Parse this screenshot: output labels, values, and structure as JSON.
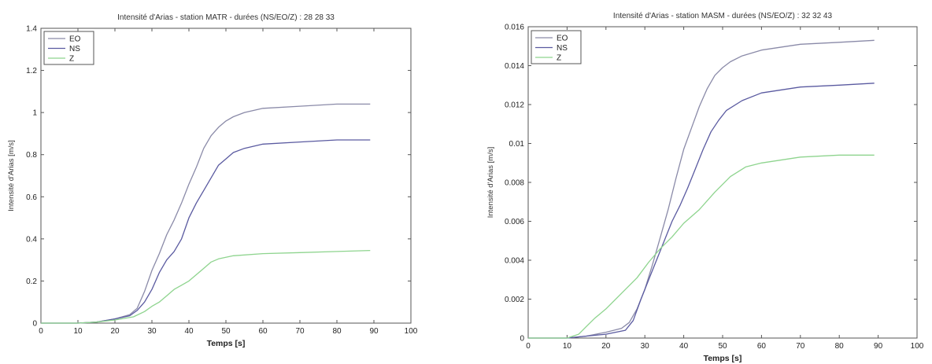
{
  "chart_data": [
    {
      "type": "line",
      "title": "Intensité d'Arias - station MATR - durées (NS/EO/Z) : 28 28 33",
      "xlabel": "Temps [s]",
      "ylabel": "Intensité d'Arias [m/s]",
      "xlim": [
        0,
        100
      ],
      "ylim": [
        0,
        1.4
      ],
      "xticks": [
        0,
        10,
        20,
        30,
        40,
        50,
        60,
        70,
        80,
        90,
        100
      ],
      "yticks": [
        0,
        0.2,
        0.4,
        0.6,
        0.8,
        1,
        1.2,
        1.4
      ],
      "ytick_labels": [
        "0",
        "0.2",
        "0.4",
        "0.6",
        "0.8",
        "1",
        "1.2",
        "1.4"
      ],
      "grid": false,
      "legend": "top-left",
      "series": [
        {
          "name": "EO",
          "color": "#8a8aa8",
          "x": [
            0,
            10,
            15,
            20,
            24,
            26,
            28,
            30,
            32,
            34,
            36,
            38,
            40,
            42,
            44,
            46,
            48,
            50,
            52,
            55,
            60,
            70,
            80,
            89
          ],
          "y": [
            0,
            0,
            0.005,
            0.02,
            0.04,
            0.07,
            0.15,
            0.25,
            0.33,
            0.42,
            0.49,
            0.57,
            0.66,
            0.74,
            0.83,
            0.89,
            0.93,
            0.96,
            0.98,
            1.0,
            1.02,
            1.03,
            1.04,
            1.04
          ]
        },
        {
          "name": "NS",
          "color": "#5a5aa0",
          "x": [
            0,
            10,
            15,
            20,
            24,
            26,
            28,
            30,
            32,
            34,
            36,
            38,
            40,
            42,
            44,
            46,
            48,
            50,
            52,
            55,
            60,
            70,
            80,
            89
          ],
          "y": [
            0,
            0,
            0.005,
            0.02,
            0.035,
            0.06,
            0.1,
            0.16,
            0.24,
            0.3,
            0.34,
            0.4,
            0.5,
            0.57,
            0.63,
            0.69,
            0.75,
            0.78,
            0.81,
            0.83,
            0.85,
            0.86,
            0.87,
            0.87
          ]
        },
        {
          "name": "Z",
          "color": "#8ed48e",
          "x": [
            0,
            10,
            15,
            20,
            25,
            28,
            30,
            32,
            34,
            36,
            38,
            40,
            42,
            44,
            46,
            48,
            52,
            60,
            70,
            80,
            89
          ],
          "y": [
            0,
            0,
            0.005,
            0.015,
            0.03,
            0.055,
            0.08,
            0.1,
            0.13,
            0.16,
            0.18,
            0.2,
            0.23,
            0.26,
            0.29,
            0.305,
            0.32,
            0.33,
            0.335,
            0.34,
            0.345
          ]
        }
      ]
    },
    {
      "type": "line",
      "title": "Intensité d'Arias - station MASM - durées (NS/EO/Z) : 32 32 43",
      "xlabel": "Temps [s]",
      "ylabel": "Intensité d'Arias [m/s]",
      "xlim": [
        0,
        100
      ],
      "ylim": [
        0,
        0.016
      ],
      "xticks": [
        0,
        10,
        20,
        30,
        40,
        50,
        60,
        70,
        80,
        90,
        100
      ],
      "yticks": [
        0,
        0.002,
        0.004,
        0.006,
        0.008,
        0.01,
        0.012,
        0.014,
        0.016
      ],
      "ytick_labels": [
        "0",
        "0.002",
        "0.004",
        "0.006",
        "0.008",
        "0.01",
        "0.012",
        "0.014",
        "0.016"
      ],
      "grid": false,
      "legend": "top-left",
      "series": [
        {
          "name": "EO",
          "color": "#8a8aa8",
          "x": [
            0,
            10,
            15,
            20,
            24,
            26,
            28,
            30,
            32,
            34,
            36,
            38,
            40,
            42,
            44,
            46,
            48,
            50,
            52,
            55,
            60,
            70,
            80,
            89
          ],
          "y": [
            0,
            0,
            0.0001,
            0.0003,
            0.0005,
            0.0008,
            0.0015,
            0.0025,
            0.0038,
            0.0052,
            0.0066,
            0.0082,
            0.0097,
            0.0108,
            0.0119,
            0.0128,
            0.0135,
            0.0139,
            0.0142,
            0.0145,
            0.0148,
            0.0151,
            0.0152,
            0.0153
          ]
        },
        {
          "name": "NS",
          "color": "#5a5aa0",
          "x": [
            0,
            10,
            15,
            20,
            25,
            27,
            29,
            31,
            33,
            35,
            37,
            39,
            41,
            43,
            45,
            47,
            49,
            51,
            55,
            60,
            70,
            80,
            89
          ],
          "y": [
            0,
            0,
            0.0001,
            0.0002,
            0.0004,
            0.0009,
            0.002,
            0.003,
            0.004,
            0.005,
            0.006,
            0.0068,
            0.0077,
            0.0087,
            0.0097,
            0.0106,
            0.0112,
            0.0117,
            0.0122,
            0.0126,
            0.0129,
            0.013,
            0.0131
          ]
        },
        {
          "name": "Z",
          "color": "#8ed48e",
          "x": [
            0,
            10,
            13,
            15,
            17,
            20,
            24,
            28,
            31,
            34,
            37,
            40,
            44,
            48,
            52,
            56,
            60,
            70,
            80,
            89
          ],
          "y": [
            0,
            0,
            0.0002,
            0.0006,
            0.001,
            0.0015,
            0.0023,
            0.0031,
            0.0039,
            0.0046,
            0.0052,
            0.0059,
            0.0066,
            0.0075,
            0.0083,
            0.0088,
            0.009,
            0.0093,
            0.0094,
            0.0094
          ]
        }
      ]
    }
  ]
}
